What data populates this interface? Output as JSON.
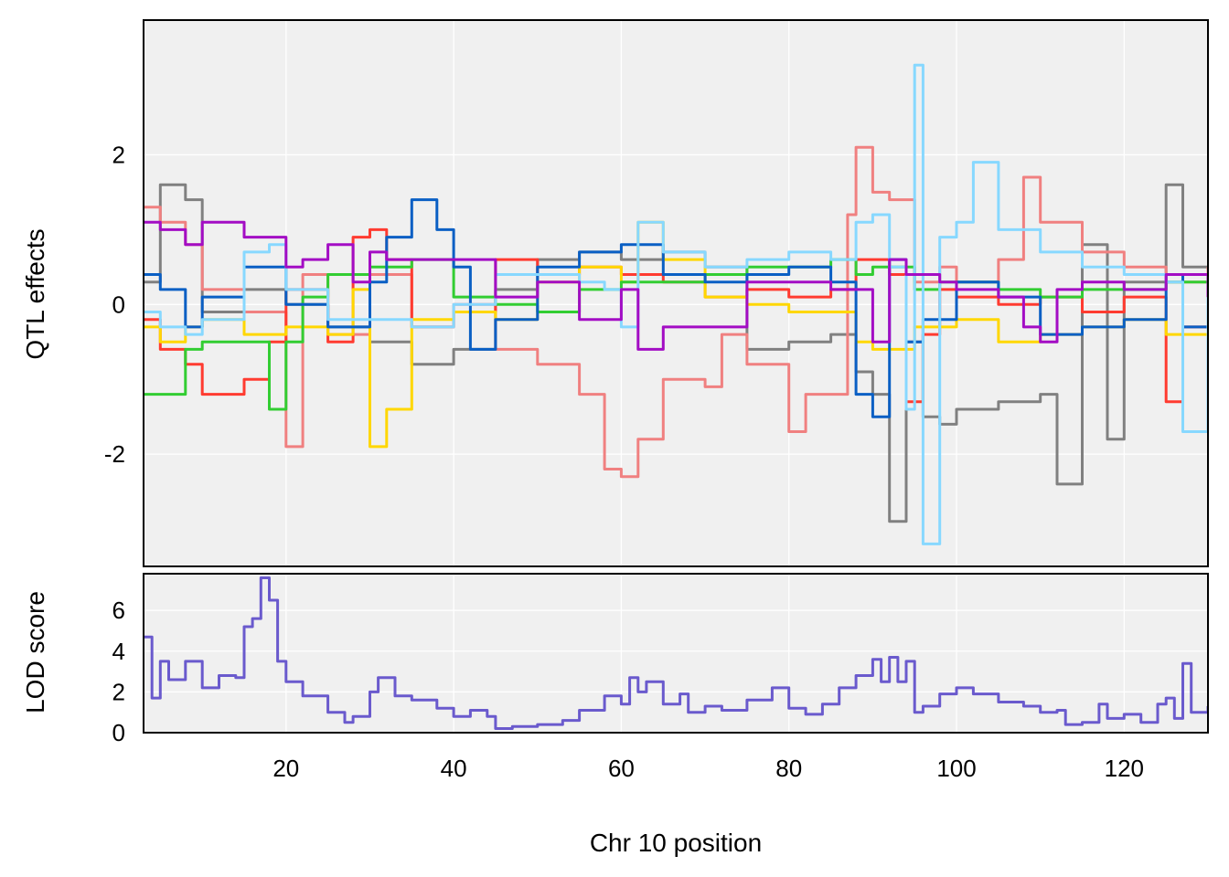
{
  "chart_data": [
    {
      "type": "line",
      "panel": "top",
      "ylabel": "QTL effects",
      "xlim": [
        3,
        130
      ],
      "ylim": [
        -3.5,
        3.8
      ],
      "yticks": [
        -2,
        0,
        2
      ],
      "grid": true,
      "background": "#f0f0f0",
      "series": [
        {
          "color": "#808080",
          "x": [
            3,
            5,
            8,
            10,
            15,
            20,
            25,
            30,
            35,
            40,
            45,
            50,
            55,
            60,
            65,
            70,
            75,
            80,
            85,
            88,
            90,
            92,
            94,
            96,
            98,
            100,
            105,
            110,
            112,
            115,
            118,
            120,
            125,
            127,
            130
          ],
          "y": [
            0.3,
            1.6,
            1.4,
            -0.1,
            0.2,
            0.0,
            -0.3,
            -0.5,
            -0.8,
            -0.6,
            0.2,
            0.6,
            0.7,
            0.6,
            0.7,
            0.5,
            -0.6,
            -0.5,
            -0.4,
            -0.9,
            -1.2,
            -2.9,
            -0.5,
            -1.5,
            -1.6,
            -1.4,
            -1.3,
            -1.2,
            -2.4,
            0.8,
            -1.8,
            0.3,
            1.6,
            0.5,
            -0.8
          ]
        },
        {
          "color": "#f08080",
          "x": [
            3,
            5,
            8,
            10,
            15,
            18,
            20,
            22,
            25,
            30,
            35,
            40,
            45,
            50,
            55,
            58,
            60,
            62,
            65,
            70,
            72,
            75,
            80,
            82,
            85,
            87,
            88,
            90,
            92,
            95,
            98,
            100,
            105,
            108,
            110,
            115,
            120,
            125,
            130
          ],
          "y": [
            1.3,
            1.1,
            0.8,
            0.2,
            -0.1,
            -0.1,
            -1.9,
            0.4,
            -0.4,
            0.4,
            -0.3,
            0.0,
            -0.6,
            -0.8,
            -1.2,
            -2.2,
            -2.3,
            -1.8,
            -1.0,
            -1.1,
            -0.4,
            -0.8,
            -1.7,
            -1.2,
            -1.2,
            1.2,
            2.1,
            1.5,
            1.4,
            0.3,
            0.5,
            0.3,
            0.6,
            1.7,
            1.1,
            0.7,
            0.5,
            0.3,
            0.5
          ]
        },
        {
          "color": "#ff3b30",
          "x": [
            3,
            5,
            8,
            10,
            15,
            18,
            20,
            25,
            28,
            30,
            32,
            35,
            40,
            45,
            50,
            55,
            60,
            65,
            70,
            75,
            80,
            85,
            88,
            90,
            92,
            94,
            96,
            98,
            100,
            105,
            110,
            115,
            120,
            125,
            127,
            130
          ],
          "y": [
            -0.2,
            -0.6,
            -0.8,
            -1.2,
            -1.0,
            -0.5,
            0.2,
            -0.5,
            0.9,
            1.0,
            0.6,
            -0.3,
            -0.1,
            0.6,
            0.4,
            0.5,
            0.4,
            0.3,
            0.1,
            0.2,
            0.1,
            0.2,
            0.6,
            0.6,
            0.4,
            -1.3,
            -0.4,
            0.2,
            0.1,
            0.0,
            0.1,
            -0.1,
            0.1,
            -1.3,
            -0.3,
            0.2
          ]
        },
        {
          "color": "#ffd700",
          "x": [
            3,
            5,
            8,
            10,
            15,
            20,
            25,
            28,
            30,
            32,
            35,
            40,
            45,
            50,
            55,
            60,
            62,
            65,
            70,
            75,
            80,
            85,
            88,
            90,
            95,
            100,
            105,
            110,
            115,
            120,
            125,
            130
          ],
          "y": [
            -0.3,
            -0.5,
            -0.3,
            -0.2,
            -0.4,
            -0.3,
            -0.4,
            0.2,
            -1.9,
            -1.4,
            -0.2,
            -0.1,
            -0.2,
            0.3,
            0.5,
            0.3,
            1.1,
            0.6,
            0.1,
            0.0,
            -0.1,
            -0.1,
            -0.5,
            -0.6,
            -0.3,
            -0.2,
            -0.5,
            -0.4,
            -0.3,
            -0.2,
            -0.4,
            -0.3
          ]
        },
        {
          "color": "#32cd32",
          "x": [
            3,
            5,
            8,
            10,
            15,
            18,
            20,
            22,
            25,
            30,
            35,
            40,
            45,
            50,
            55,
            60,
            65,
            70,
            75,
            80,
            85,
            88,
            90,
            92,
            95,
            98,
            100,
            105,
            110,
            115,
            120,
            125,
            130
          ],
          "y": [
            -1.2,
            -1.2,
            -0.6,
            -0.5,
            -0.5,
            -1.4,
            -0.5,
            0.1,
            0.4,
            0.5,
            0.6,
            0.1,
            0.0,
            -0.1,
            0.2,
            0.3,
            0.3,
            0.4,
            0.5,
            0.5,
            0.6,
            0.4,
            0.5,
            0.5,
            0.2,
            0.3,
            0.3,
            0.2,
            0.1,
            0.2,
            0.2,
            0.3,
            0.3
          ]
        },
        {
          "color": "#0a5fc4",
          "x": [
            3,
            5,
            8,
            10,
            15,
            20,
            25,
            30,
            32,
            35,
            38,
            40,
            42,
            45,
            50,
            55,
            60,
            65,
            70,
            75,
            80,
            85,
            88,
            90,
            92,
            94,
            96,
            98,
            100,
            105,
            110,
            115,
            120,
            125,
            127,
            130
          ],
          "y": [
            0.4,
            0.2,
            -0.3,
            0.1,
            0.5,
            0.0,
            -0.3,
            0.3,
            0.9,
            1.4,
            1.0,
            0.5,
            -0.6,
            -0.2,
            0.5,
            0.7,
            0.8,
            0.4,
            0.3,
            0.4,
            0.5,
            0.3,
            -1.2,
            -1.5,
            0.6,
            -0.5,
            -0.2,
            -0.2,
            0.3,
            0.1,
            -0.4,
            -0.3,
            -0.2,
            0.4,
            -0.3,
            0.0
          ]
        },
        {
          "color": "#87d8ff",
          "x": [
            3,
            5,
            8,
            10,
            15,
            18,
            20,
            25,
            30,
            35,
            40,
            45,
            50,
            55,
            58,
            60,
            62,
            65,
            70,
            75,
            80,
            85,
            88,
            90,
            92,
            94,
            95,
            96,
            98,
            100,
            102,
            105,
            110,
            115,
            120,
            125,
            127,
            130
          ],
          "y": [
            -0.1,
            -0.3,
            -0.4,
            -0.2,
            0.7,
            0.8,
            0.2,
            -0.2,
            -0.2,
            -0.3,
            0.0,
            0.4,
            0.4,
            0.3,
            0.2,
            -0.3,
            1.1,
            0.7,
            0.5,
            0.6,
            0.7,
            0.6,
            1.1,
            1.2,
            0.5,
            -1.4,
            3.2,
            -3.2,
            0.9,
            1.1,
            1.9,
            1.0,
            0.7,
            0.5,
            0.4,
            0.3,
            -1.7,
            0.1
          ]
        },
        {
          "color": "#a30dc4",
          "x": [
            3,
            5,
            8,
            10,
            15,
            18,
            20,
            22,
            25,
            28,
            30,
            32,
            35,
            40,
            45,
            50,
            55,
            60,
            62,
            65,
            70,
            75,
            80,
            85,
            88,
            90,
            92,
            94,
            96,
            98,
            100,
            105,
            108,
            110,
            112,
            115,
            120,
            125,
            130
          ],
          "y": [
            1.1,
            1.0,
            0.8,
            1.1,
            0.9,
            0.9,
            0.5,
            0.6,
            0.8,
            0.3,
            0.7,
            0.6,
            0.6,
            0.6,
            0.1,
            0.3,
            -0.2,
            0.2,
            -0.6,
            -0.3,
            -0.3,
            0.3,
            0.3,
            0.2,
            0.2,
            -0.5,
            0.6,
            0.4,
            0.4,
            0.3,
            0.2,
            0.1,
            -0.3,
            -0.5,
            0.2,
            0.3,
            0.2,
            0.4,
            0.1
          ]
        }
      ]
    },
    {
      "type": "line",
      "panel": "bottom",
      "xlabel": "Chr 10 position",
      "ylabel": "LOD score",
      "xlim": [
        3,
        130
      ],
      "ylim": [
        0,
        7.8
      ],
      "xticks": [
        20,
        40,
        60,
        80,
        100,
        120
      ],
      "yticks": [
        0,
        2,
        4,
        6
      ],
      "grid": true,
      "background": "#f0f0f0",
      "series": [
        {
          "color": "#6a5acd",
          "x": [
            3,
            4,
            5,
            6,
            8,
            10,
            12,
            14,
            15,
            16,
            17,
            18,
            19,
            20,
            22,
            25,
            27,
            28,
            30,
            31,
            33,
            35,
            38,
            40,
            42,
            44,
            45,
            47,
            50,
            53,
            55,
            58,
            60,
            61,
            62,
            63,
            65,
            67,
            68,
            70,
            72,
            75,
            78,
            80,
            82,
            84,
            86,
            88,
            90,
            91,
            92,
            93,
            94,
            95,
            96,
            98,
            100,
            102,
            105,
            108,
            110,
            112,
            113,
            115,
            117,
            118,
            120,
            122,
            124,
            125,
            126,
            127,
            128,
            130
          ],
          "y": [
            4.7,
            1.7,
            3.5,
            2.6,
            3.5,
            2.2,
            2.8,
            2.7,
            5.2,
            5.6,
            7.6,
            6.5,
            3.5,
            2.5,
            1.8,
            1.0,
            0.5,
            0.8,
            2.0,
            2.7,
            1.8,
            1.6,
            1.2,
            0.8,
            1.1,
            0.8,
            0.2,
            0.3,
            0.4,
            0.6,
            1.1,
            1.8,
            1.4,
            2.7,
            2.0,
            2.5,
            1.4,
            1.9,
            1.0,
            1.3,
            1.1,
            1.6,
            2.2,
            1.2,
            0.9,
            1.4,
            2.2,
            2.8,
            3.6,
            2.5,
            3.7,
            2.5,
            3.5,
            1.0,
            1.3,
            1.9,
            2.2,
            1.9,
            1.5,
            1.3,
            1.0,
            1.1,
            0.4,
            0.5,
            1.4,
            0.7,
            0.9,
            0.5,
            1.4,
            1.7,
            0.7,
            3.4,
            1.0,
            1.3
          ]
        }
      ]
    }
  ]
}
